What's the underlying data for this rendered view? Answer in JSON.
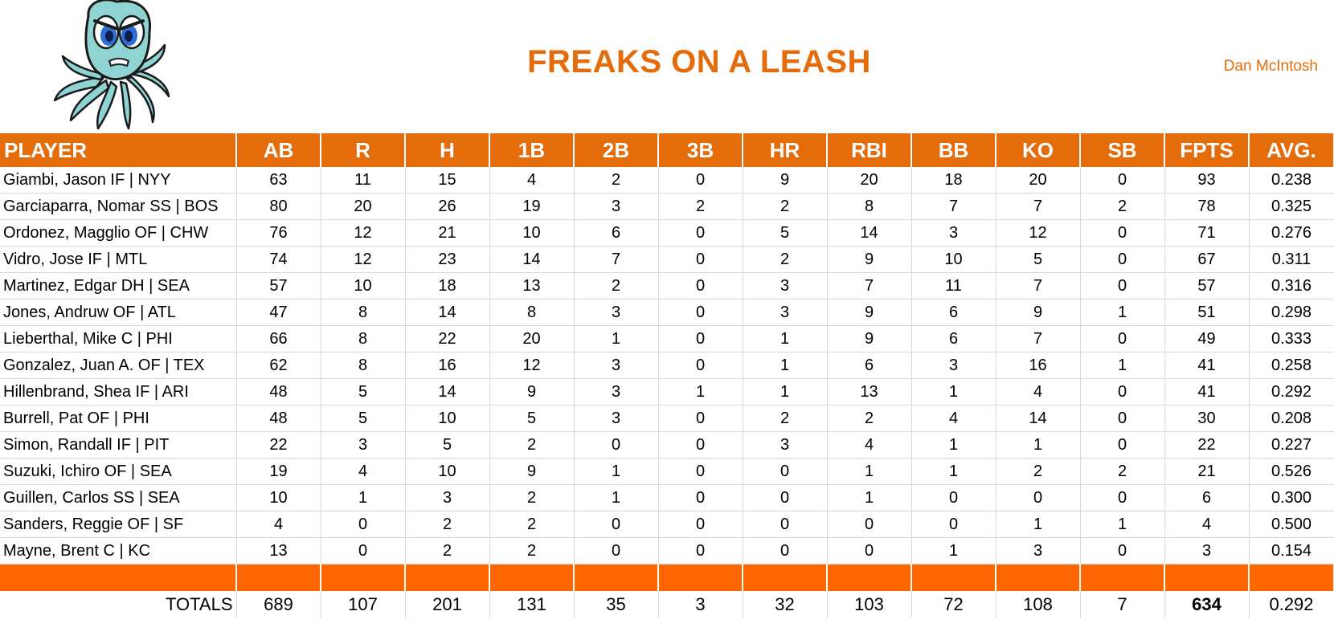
{
  "header": {
    "team_name": "FREAKS ON A LEASH",
    "owner": "Dan McIntosh",
    "logo_icon": "octopus-mascot-icon"
  },
  "colors": {
    "accent": "#e46c0a",
    "spacer": "#ff6600"
  },
  "table": {
    "columns": [
      "PLAYER",
      "AB",
      "R",
      "H",
      "1B",
      "2B",
      "3B",
      "HR",
      "RBI",
      "BB",
      "KO",
      "SB",
      "FPTS",
      "AVG."
    ],
    "rows": [
      [
        "Giambi, Jason IF | NYY",
        "63",
        "11",
        "15",
        "4",
        "2",
        "0",
        "9",
        "20",
        "18",
        "20",
        "0",
        "93",
        "0.238"
      ],
      [
        "Garciaparra, Nomar SS | BOS",
        "80",
        "20",
        "26",
        "19",
        "3",
        "2",
        "2",
        "8",
        "7",
        "7",
        "2",
        "78",
        "0.325"
      ],
      [
        "Ordonez, Magglio OF | CHW",
        "76",
        "12",
        "21",
        "10",
        "6",
        "0",
        "5",
        "14",
        "3",
        "12",
        "0",
        "71",
        "0.276"
      ],
      [
        "Vidro, Jose IF | MTL",
        "74",
        "12",
        "23",
        "14",
        "7",
        "0",
        "2",
        "9",
        "10",
        "5",
        "0",
        "67",
        "0.311"
      ],
      [
        "Martinez, Edgar DH | SEA",
        "57",
        "10",
        "18",
        "13",
        "2",
        "0",
        "3",
        "7",
        "11",
        "7",
        "0",
        "57",
        "0.316"
      ],
      [
        "Jones, Andruw OF | ATL",
        "47",
        "8",
        "14",
        "8",
        "3",
        "0",
        "3",
        "9",
        "6",
        "9",
        "1",
        "51",
        "0.298"
      ],
      [
        "Lieberthal, Mike C | PHI",
        "66",
        "8",
        "22",
        "20",
        "1",
        "0",
        "1",
        "9",
        "6",
        "7",
        "0",
        "49",
        "0.333"
      ],
      [
        "Gonzalez, Juan A. OF | TEX",
        "62",
        "8",
        "16",
        "12",
        "3",
        "0",
        "1",
        "6",
        "3",
        "16",
        "1",
        "41",
        "0.258"
      ],
      [
        "Hillenbrand, Shea IF | ARI",
        "48",
        "5",
        "14",
        "9",
        "3",
        "1",
        "1",
        "13",
        "1",
        "4",
        "0",
        "41",
        "0.292"
      ],
      [
        "Burrell, Pat OF | PHI",
        "48",
        "5",
        "10",
        "5",
        "3",
        "0",
        "2",
        "2",
        "4",
        "14",
        "0",
        "30",
        "0.208"
      ],
      [
        "Simon, Randall IF | PIT",
        "22",
        "3",
        "5",
        "2",
        "0",
        "0",
        "3",
        "4",
        "1",
        "1",
        "0",
        "22",
        "0.227"
      ],
      [
        "Suzuki, Ichiro OF | SEA",
        "19",
        "4",
        "10",
        "9",
        "1",
        "0",
        "0",
        "1",
        "1",
        "2",
        "2",
        "21",
        "0.526"
      ],
      [
        "Guillen, Carlos SS | SEA",
        "10",
        "1",
        "3",
        "2",
        "1",
        "0",
        "0",
        "1",
        "0",
        "0",
        "0",
        "6",
        "0.300"
      ],
      [
        "Sanders, Reggie OF | SF",
        "4",
        "0",
        "2",
        "2",
        "0",
        "0",
        "0",
        "0",
        "0",
        "1",
        "1",
        "4",
        "0.500"
      ],
      [
        "Mayne, Brent C | KC",
        "13",
        "0",
        "2",
        "2",
        "0",
        "0",
        "0",
        "0",
        "1",
        "3",
        "0",
        "3",
        "0.154"
      ]
    ],
    "totals": [
      "TOTALS",
      "689",
      "107",
      "201",
      "131",
      "35",
      "3",
      "32",
      "103",
      "72",
      "108",
      "7",
      "634",
      "0.292"
    ]
  }
}
